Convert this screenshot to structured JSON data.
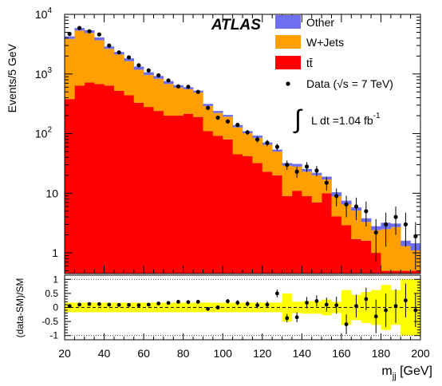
{
  "chart_data": [
    {
      "type": "bar",
      "subtype": "stacked-histogram-with-data-points",
      "xlabel": "m",
      "xlabel_sub": "jj",
      "xlabel_unit": " [GeV]",
      "ylabel": "Events/5 GeV",
      "log_y": true,
      "xlim": [
        20,
        200
      ],
      "ylim": [
        0.45,
        10000
      ],
      "bin_width": 5,
      "x_bin_low_edges": [
        20,
        25,
        30,
        35,
        40,
        45,
        50,
        55,
        60,
        65,
        70,
        75,
        80,
        85,
        90,
        95,
        100,
        105,
        110,
        115,
        120,
        125,
        130,
        135,
        140,
        145,
        150,
        155,
        160,
        165,
        170,
        175,
        180,
        185,
        190,
        195
      ],
      "x_ticks": [
        20,
        40,
        60,
        80,
        100,
        120,
        140,
        160,
        180,
        200
      ],
      "y_ticks": [
        {
          "value": 1,
          "label": "1",
          "exp": ""
        },
        {
          "value": 10,
          "label": "10",
          "exp": ""
        },
        {
          "value": 100,
          "label": "10",
          "exp": "2"
        },
        {
          "value": 1000,
          "label": "10",
          "exp": "3"
        },
        {
          "value": 10000,
          "label": "10",
          "exp": "4"
        }
      ],
      "watermark": "ATLAS",
      "legend": {
        "other": "Other",
        "wjets": "W+Jets",
        "ttbar": "tt̄",
        "data": "Data (√s = 7 TeV)",
        "lumi_prefix": "L dt =1.04 fb",
        "lumi_exp": "-1"
      },
      "series": [
        {
          "name": "t̄t",
          "key": "ttbar",
          "color": "#ff0000",
          "values": [
            380,
            640,
            720,
            680,
            640,
            520,
            440,
            330,
            280,
            240,
            200,
            200,
            215,
            190,
            110,
            92,
            80,
            45,
            42,
            32,
            23,
            20,
            9,
            11,
            9,
            7,
            10,
            4.1,
            2.9,
            1.7,
            1.6,
            1.0,
            0.5,
            0.5,
            0.5,
            0.5
          ]
        },
        {
          "name": "W+Jets",
          "key": "wjets",
          "color": "#ffa000",
          "values": [
            3500,
            4700,
            4150,
            3000,
            2000,
            1600,
            1200,
            850,
            680,
            590,
            480,
            390,
            340,
            300,
            180,
            130,
            112,
            82,
            60,
            53,
            42,
            30,
            20,
            17,
            14,
            13,
            7,
            4.8,
            3.6,
            3.4,
            1.7,
            1.4,
            2.0,
            2.2,
            0.8,
            0.6
          ]
        },
        {
          "name": "Other",
          "key": "other",
          "color": "#6e6ef0",
          "values": [
            400,
            560,
            530,
            420,
            260,
            220,
            190,
            150,
            110,
            95,
            80,
            60,
            45,
            35,
            25,
            18,
            14,
            12,
            8,
            8,
            6,
            4,
            3,
            3,
            2.5,
            2,
            2,
            1.5,
            1,
            0.7,
            0.5,
            0.4,
            0.7,
            0.4,
            0.3,
            0.35
          ]
        },
        {
          "name": "Data (√s = 7 TeV)",
          "key": "data",
          "color": "#000000",
          "x": [
            22.5,
            27.5,
            32.5,
            37.5,
            42.5,
            47.5,
            52.5,
            57.5,
            62.5,
            67.5,
            72.5,
            77.5,
            82.5,
            87.5,
            92.5,
            97.5,
            102.5,
            107.5,
            112.5,
            117.5,
            122.5,
            127.5,
            132.5,
            137.5,
            142.5,
            147.5,
            152.5,
            157.5,
            162.5,
            167.5,
            172.5,
            177.5,
            182.5,
            187.5,
            192.5,
            197.5
          ],
          "values": [
            4700,
            5900,
            5200,
            4600,
            3000,
            2300,
            1900,
            1400,
            1150,
            950,
            780,
            620,
            610,
            500,
            270,
            185,
            160,
            140,
            105,
            80,
            70,
            60,
            30,
            23,
            28,
            24,
            15,
            9,
            6.5,
            6,
            5,
            2.2,
            3,
            4,
            3,
            1.9
          ]
        }
      ]
    },
    {
      "type": "scatter",
      "subtype": "ratio-panel",
      "ylabel": "(data-SM)/SM",
      "xlim": [
        20,
        200
      ],
      "ylim": [
        -1.15,
        1.15
      ],
      "y_ticks": [
        {
          "value": 1,
          "label": "1"
        },
        {
          "value": 0.5,
          "label": "0.5"
        },
        {
          "value": 0,
          "label": "0"
        },
        {
          "value": -0.5,
          "label": "-0.5"
        },
        {
          "value": -1,
          "label": "-1"
        }
      ],
      "x_ticks": [
        {
          "value": 20,
          "label": "20"
        },
        {
          "value": 40,
          "label": "40"
        },
        {
          "value": 60,
          "label": "60"
        },
        {
          "value": 80,
          "label": "80"
        },
        {
          "value": 100,
          "label": "100"
        },
        {
          "value": 120,
          "label": "120"
        },
        {
          "value": 140,
          "label": "140"
        },
        {
          "value": 160,
          "label": "160"
        },
        {
          "value": 180,
          "label": "180"
        },
        {
          "value": 200,
          "label": "200"
        }
      ],
      "band_color": "#ffff00",
      "band_halfwidth": [
        0.17,
        0.17,
        0.17,
        0.17,
        0.17,
        0.17,
        0.17,
        0.17,
        0.17,
        0.17,
        0.17,
        0.17,
        0.17,
        0.17,
        0.17,
        0.17,
        0.17,
        0.17,
        0.17,
        0.17,
        0.17,
        0.17,
        0.5,
        0.2,
        0.22,
        0.22,
        0.28,
        0.2,
        0.62,
        0.45,
        0.55,
        0.62,
        0.8,
        0.62,
        1.0,
        1.0
      ],
      "x": [
        22.5,
        27.5,
        32.5,
        37.5,
        42.5,
        47.5,
        52.5,
        57.5,
        62.5,
        67.5,
        72.5,
        77.5,
        82.5,
        87.5,
        92.5,
        97.5,
        102.5,
        107.5,
        112.5,
        117.5,
        122.5,
        127.5,
        132.5,
        137.5,
        142.5,
        147.5,
        152.5,
        157.5,
        162.5,
        167.5,
        172.5,
        177.5,
        182.5,
        187.5,
        192.5,
        197.5
      ],
      "values": [
        0.05,
        0.1,
        0.12,
        0.12,
        0.1,
        0.09,
        0.09,
        0.08,
        0.1,
        0.14,
        0.16,
        0.2,
        0.19,
        0.2,
        -0.05,
        0.0,
        0.22,
        0.17,
        0.13,
        0.08,
        0.1,
        0.5,
        -0.38,
        -0.35,
        0.17,
        0.23,
        0.1,
        0.08,
        -0.6,
        0.05,
        0.3,
        -0.32,
        -0.1,
        0.05,
        0.25,
        -0.1
      ],
      "errors": [
        0.03,
        0.03,
        0.03,
        0.03,
        0.03,
        0.03,
        0.03,
        0.03,
        0.04,
        0.04,
        0.04,
        0.05,
        0.05,
        0.05,
        0.06,
        0.07,
        0.08,
        0.09,
        0.1,
        0.11,
        0.12,
        0.14,
        0.15,
        0.18,
        0.2,
        0.2,
        0.25,
        0.3,
        0.35,
        0.4,
        0.4,
        0.6,
        0.6,
        0.6,
        0.6,
        0.6
      ]
    }
  ]
}
